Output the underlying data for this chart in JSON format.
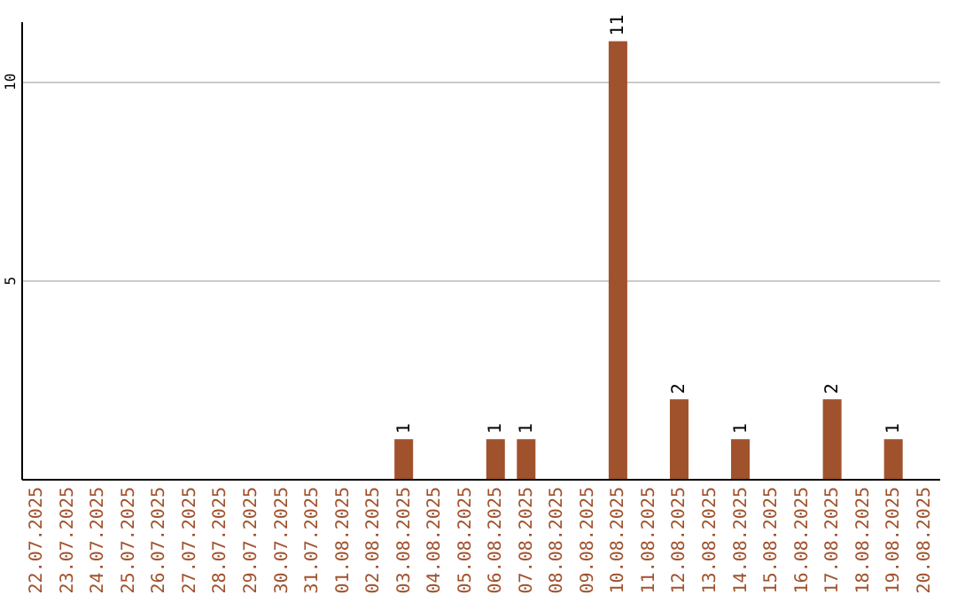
{
  "chart_data": {
    "type": "bar",
    "categories": [
      "22.07.2025",
      "23.07.2025",
      "24.07.2025",
      "25.07.2025",
      "26.07.2025",
      "27.07.2025",
      "28.07.2025",
      "29.07.2025",
      "30.07.2025",
      "31.07.2025",
      "01.08.2025",
      "02.08.2025",
      "03.08.2025",
      "04.08.2025",
      "05.08.2025",
      "06.08.2025",
      "07.08.2025",
      "08.08.2025",
      "09.08.2025",
      "10.08.2025",
      "11.08.2025",
      "12.08.2025",
      "13.08.2025",
      "14.08.2025",
      "15.08.2025",
      "16.08.2025",
      "17.08.2025",
      "18.08.2025",
      "19.08.2025",
      "20.08.2025"
    ],
    "values": [
      0,
      0,
      0,
      0,
      0,
      0,
      0,
      0,
      0,
      0,
      0,
      0,
      1,
      0,
      0,
      1,
      1,
      0,
      0,
      11,
      0,
      2,
      0,
      1,
      0,
      0,
      2,
      0,
      1,
      0
    ],
    "value_labels": [
      null,
      null,
      null,
      null,
      null,
      null,
      null,
      null,
      null,
      null,
      null,
      null,
      "1",
      null,
      null,
      "1",
      "1",
      null,
      null,
      "11",
      null,
      "2",
      null,
      "1",
      null,
      null,
      "2",
      null,
      "1",
      null
    ],
    "color": "#a0522d",
    "ylim": [
      0,
      11.5
    ],
    "yticks": [
      5,
      10
    ],
    "grid": "y"
  }
}
